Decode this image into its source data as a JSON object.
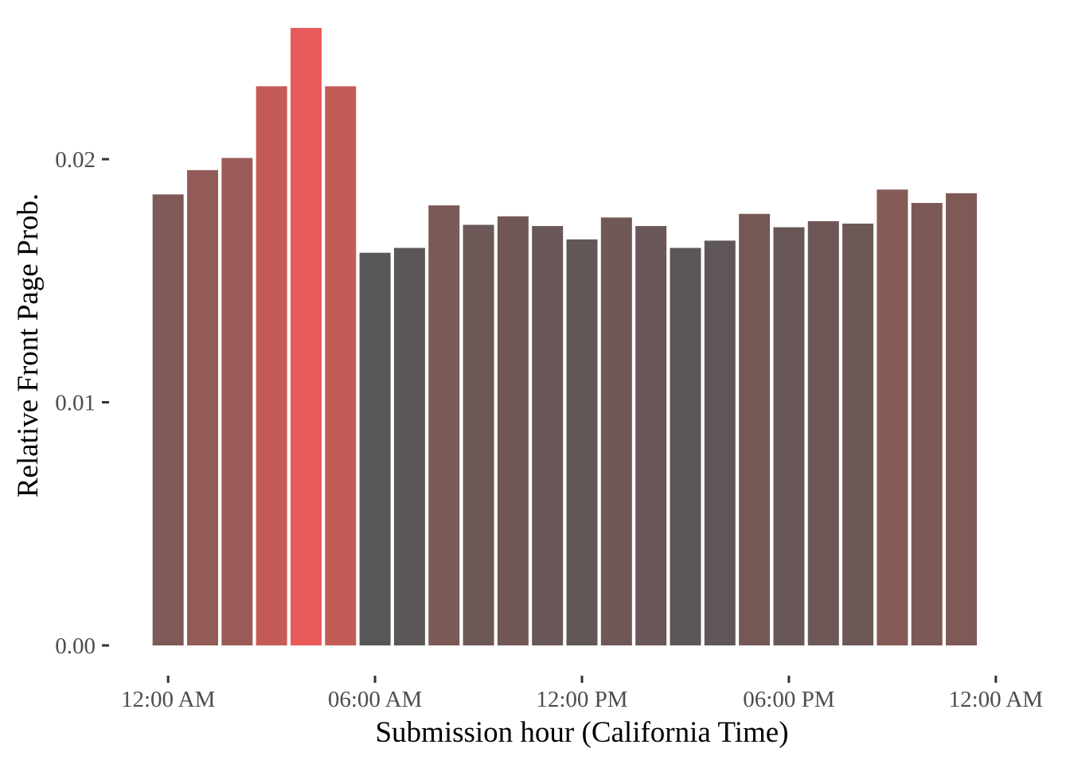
{
  "chart_data": {
    "type": "bar",
    "title": "",
    "xlabel": "Submission hour (California Time)",
    "ylabel": "Relative Front Page Prob.",
    "ylim": [
      0,
      0.0255
    ],
    "xlim": [
      -0.5,
      24.5
    ],
    "grid": false,
    "legend": "none",
    "y_ticks": [
      {
        "value": 0,
        "label": "0.00"
      },
      {
        "value": 0.01,
        "label": "0.01"
      },
      {
        "value": 0.02,
        "label": "0.02"
      }
    ],
    "x_ticks": [
      {
        "value": 0,
        "label": "12:00 AM"
      },
      {
        "value": 6,
        "label": "06:00 AM"
      },
      {
        "value": 12,
        "label": "12:00 PM"
      },
      {
        "value": 18,
        "label": "06:00 PM"
      },
      {
        "value": 24,
        "label": "12:00 AM"
      }
    ],
    "hours": [
      0,
      1,
      2,
      3,
      4,
      5,
      6,
      7,
      8,
      9,
      10,
      11,
      12,
      13,
      14,
      15,
      16,
      17,
      18,
      19,
      20,
      21,
      22,
      23
    ],
    "values": [
      0.01855,
      0.01955,
      0.02005,
      0.023,
      0.0254,
      0.023,
      0.01615,
      0.01635,
      0.0181,
      0.0173,
      0.01765,
      0.01725,
      0.0167,
      0.0176,
      0.01725,
      0.01635,
      0.01665,
      0.01775,
      0.0172,
      0.01745,
      0.01735,
      0.01875,
      0.0182,
      0.0186
    ],
    "colors": [
      "#7e5955",
      "#935b57",
      "#9b5c58",
      "#c55b57",
      "#e95b5a",
      "#c55b57",
      "#575757",
      "#5c5757",
      "#7b5956",
      "#6b5857",
      "#715856",
      "#6a5757",
      "#605757",
      "#6f5856",
      "#6a5757",
      "#5c5757",
      "#5f5757",
      "#755856",
      "#695757",
      "#6d5857",
      "#6b5857",
      "#865a56",
      "#7a5956",
      "#7e5956"
    ]
  }
}
